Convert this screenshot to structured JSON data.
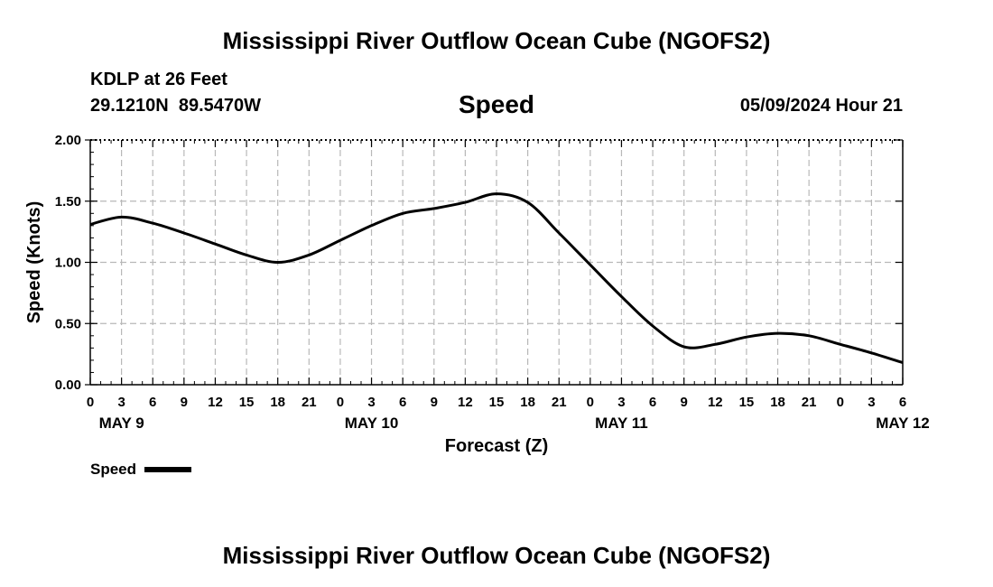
{
  "header": {
    "title": "Mississippi River Outflow Ocean Cube (NGOFS2)",
    "station": "KDLP at 26 Feet",
    "coords": "29.1210N  89.5470W",
    "variable": "Speed",
    "datetime": "05/09/2024 Hour 21"
  },
  "footer": {
    "title": "Mississippi River Outflow Ocean Cube (NGOFS2)"
  },
  "chart_data": {
    "type": "line",
    "title": "Speed",
    "xlabel": "Forecast (Z)",
    "ylabel": "Speed (Knots)",
    "ylim": [
      0,
      2
    ],
    "yticks": [
      "0.00",
      "0.50",
      "1.00",
      "1.50",
      "2.00"
    ],
    "x_tick_labels": [
      "0",
      "3",
      "6",
      "9",
      "12",
      "15",
      "18",
      "21",
      "0",
      "3",
      "6",
      "9",
      "12",
      "15",
      "18",
      "21",
      "0",
      "3",
      "6",
      "9",
      "12",
      "15",
      "18",
      "21",
      "0",
      "3",
      "6"
    ],
    "day_labels": [
      {
        "label": "MAY 9",
        "at_hour": 3
      },
      {
        "label": "MAY 10",
        "at_hour": 27
      },
      {
        "label": "MAY 11",
        "at_hour": 51
      },
      {
        "label": "MAY 12",
        "at_hour": 78
      }
    ],
    "x_units": "hours from May 9 00Z",
    "xlim": [
      0,
      78
    ],
    "grid": true,
    "legend": {
      "position": "bottom-left",
      "entries": [
        {
          "name": "Speed",
          "color": "#000000"
        }
      ]
    },
    "series": [
      {
        "name": "Speed",
        "color": "#000000",
        "x": [
          0,
          3,
          6,
          9,
          12,
          15,
          18,
          21,
          24,
          27,
          30,
          33,
          36,
          39,
          42,
          45,
          48,
          51,
          54,
          57,
          60,
          63,
          66,
          69,
          72,
          75,
          78
        ],
        "y": [
          1.31,
          1.37,
          1.32,
          1.24,
          1.15,
          1.06,
          1.0,
          1.06,
          1.18,
          1.3,
          1.4,
          1.44,
          1.49,
          1.56,
          1.49,
          1.24,
          0.98,
          0.72,
          0.48,
          0.31,
          0.33,
          0.39,
          0.42,
          0.4,
          0.33,
          0.26,
          0.18
        ]
      }
    ]
  }
}
